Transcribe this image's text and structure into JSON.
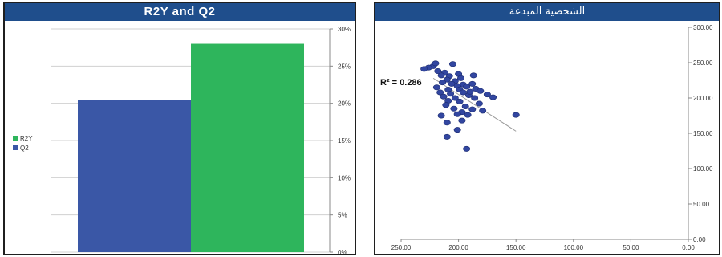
{
  "colors": {
    "title_bg": "#1f4e8c",
    "r2y": "#2eb55c",
    "q2": "#3a57a6",
    "points": "#3246a0",
    "trend": "#9a9a9a",
    "axis": "#888888"
  },
  "chart_data": [
    {
      "type": "bar",
      "title": "R2Y and Q2",
      "series": [
        {
          "name": "Q2",
          "values": [
            0.205
          ]
        },
        {
          "name": "R2Y",
          "values": [
            0.28
          ]
        }
      ],
      "ylim": [
        0,
        0.3
      ],
      "yticks": [
        "0%",
        "5%",
        "10%",
        "15%",
        "20%",
        "25%",
        "30%"
      ],
      "y_axis_side": "right",
      "grid": true,
      "legend": {
        "position": "left",
        "entries": [
          "R2Y",
          "Q2"
        ]
      }
    },
    {
      "type": "scatter",
      "title": "الشخصية المبدعة",
      "xlim": [
        250,
        0
      ],
      "x_reversed": true,
      "ylim": [
        0,
        300
      ],
      "y_axis_side": "right",
      "grid": false,
      "xticks": [
        "250.00",
        "200.00",
        "150.00",
        "100.00",
        "50.00",
        "0.00"
      ],
      "yticks": [
        "0.00",
        "50.00",
        "100.00",
        "150.00",
        "200.00",
        "250.00",
        "300.00"
      ],
      "annotation": "R² = 0.286",
      "trendline": {
        "x": [
          222,
          150
        ],
        "y": [
          228,
          153
        ]
      },
      "points": [
        [
          222,
          245
        ],
        [
          226,
          243
        ],
        [
          220,
          249
        ],
        [
          230,
          241
        ],
        [
          218,
          238
        ],
        [
          205,
          248
        ],
        [
          212,
          236
        ],
        [
          215,
          232
        ],
        [
          208,
          231
        ],
        [
          200,
          234
        ],
        [
          210,
          226
        ],
        [
          203,
          224
        ],
        [
          198,
          228
        ],
        [
          214,
          222
        ],
        [
          206,
          220
        ],
        [
          196,
          219
        ],
        [
          201,
          217
        ],
        [
          219,
          215
        ],
        [
          193,
          216
        ],
        [
          209,
          212
        ],
        [
          199,
          212
        ],
        [
          188,
          220
        ],
        [
          216,
          208
        ],
        [
          207,
          206
        ],
        [
          196,
          208
        ],
        [
          185,
          213
        ],
        [
          213,
          202
        ],
        [
          203,
          200
        ],
        [
          191,
          204
        ],
        [
          181,
          210
        ],
        [
          209,
          196
        ],
        [
          199,
          195
        ],
        [
          186,
          200
        ],
        [
          175,
          205
        ],
        [
          211,
          190
        ],
        [
          194,
          188
        ],
        [
          182,
          192
        ],
        [
          170,
          201
        ],
        [
          204,
          185
        ],
        [
          188,
          184
        ],
        [
          197,
          180
        ],
        [
          215,
          175
        ],
        [
          201,
          177
        ],
        [
          192,
          176
        ],
        [
          179,
          182
        ],
        [
          150,
          176
        ],
        [
          210,
          165
        ],
        [
          197,
          168
        ],
        [
          201,
          155
        ],
        [
          210,
          145
        ],
        [
          193,
          128
        ],
        [
          187,
          232
        ],
        [
          190,
          209
        ]
      ]
    }
  ]
}
